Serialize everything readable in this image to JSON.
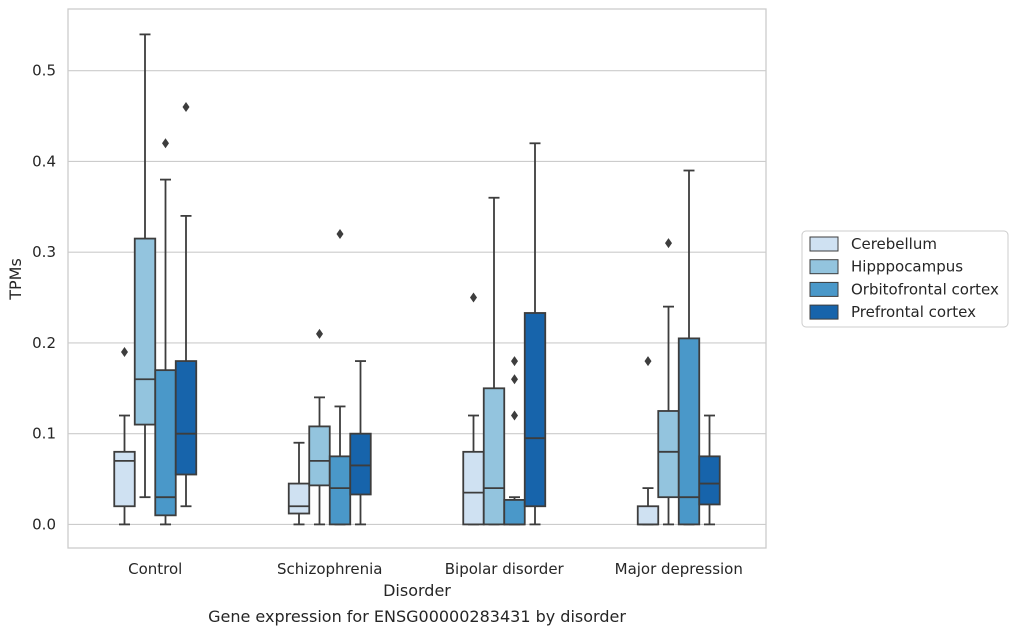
{
  "chart_data": {
    "type": "box",
    "caption": "Gene expression for ENSG00000283431 by disorder",
    "xlabel": "Disorder",
    "ylabel": "TPMs",
    "ylim": [
      -0.026,
      0.568
    ],
    "yticks": [
      0.0,
      0.1,
      0.2,
      0.3,
      0.4,
      0.5
    ],
    "ytick_labels": [
      "0.0",
      "0.1",
      "0.2",
      "0.3",
      "0.4",
      "0.5"
    ],
    "grid": "horizontal",
    "legend_position": "right",
    "categories": [
      "Control",
      "Schizophrenia",
      "Bipolar disorder",
      "Major depression"
    ],
    "series": [
      {
        "name": "Cerebellum",
        "color": "#cfe1f2",
        "boxes": [
          {
            "whisker_low": 0.0,
            "q1": 0.02,
            "median": 0.07,
            "q3": 0.08,
            "whisker_high": 0.12,
            "outliers": [
              0.19
            ]
          },
          {
            "whisker_low": 0.0,
            "q1": 0.012,
            "median": 0.02,
            "q3": 0.045,
            "whisker_high": 0.09,
            "outliers": []
          },
          {
            "whisker_low": 0.0,
            "q1": 0.0,
            "median": 0.035,
            "q3": 0.08,
            "whisker_high": 0.12,
            "outliers": [
              0.25
            ]
          },
          {
            "whisker_low": 0.0,
            "q1": 0.0,
            "median": 0.0,
            "q3": 0.02,
            "whisker_high": 0.04,
            "outliers": [
              0.18
            ]
          }
        ]
      },
      {
        "name": "Hipppocampus",
        "color": "#93c4de",
        "boxes": [
          {
            "whisker_low": 0.03,
            "q1": 0.11,
            "median": 0.16,
            "q3": 0.315,
            "whisker_high": 0.54,
            "outliers": []
          },
          {
            "whisker_low": 0.0,
            "q1": 0.043,
            "median": 0.07,
            "q3": 0.108,
            "whisker_high": 0.14,
            "outliers": [
              0.21
            ]
          },
          {
            "whisker_low": 0.0,
            "q1": 0.0,
            "median": 0.04,
            "q3": 0.15,
            "whisker_high": 0.36,
            "outliers": []
          },
          {
            "whisker_low": 0.0,
            "q1": 0.03,
            "median": 0.08,
            "q3": 0.125,
            "whisker_high": 0.24,
            "outliers": [
              0.31
            ]
          }
        ]
      },
      {
        "name": "Orbitofrontal cortex",
        "color": "#4a98c9",
        "boxes": [
          {
            "whisker_low": 0.0,
            "q1": 0.01,
            "median": 0.03,
            "q3": 0.17,
            "whisker_high": 0.38,
            "outliers": [
              0.42
            ]
          },
          {
            "whisker_low": 0.0,
            "q1": 0.0,
            "median": 0.04,
            "q3": 0.075,
            "whisker_high": 0.13,
            "outliers": [
              0.32
            ]
          },
          {
            "whisker_low": 0.0,
            "q1": 0.0,
            "median": 0.0,
            "q3": 0.027,
            "whisker_high": 0.03,
            "outliers": [
              0.12,
              0.16,
              0.18
            ]
          },
          {
            "whisker_low": 0.0,
            "q1": 0.0,
            "median": 0.03,
            "q3": 0.205,
            "whisker_high": 0.39,
            "outliers": []
          }
        ]
      },
      {
        "name": "Prefrontal cortex",
        "color": "#1764ab",
        "boxes": [
          {
            "whisker_low": 0.02,
            "q1": 0.055,
            "median": 0.1,
            "q3": 0.18,
            "whisker_high": 0.34,
            "outliers": [
              0.46
            ]
          },
          {
            "whisker_low": 0.0,
            "q1": 0.033,
            "median": 0.065,
            "q3": 0.1,
            "whisker_high": 0.18,
            "outliers": []
          },
          {
            "whisker_low": 0.0,
            "q1": 0.02,
            "median": 0.095,
            "q3": 0.233,
            "whisker_high": 0.42,
            "outliers": []
          },
          {
            "whisker_low": 0.0,
            "q1": 0.022,
            "median": 0.045,
            "q3": 0.075,
            "whisker_high": 0.12,
            "outliers": []
          }
        ]
      }
    ]
  }
}
